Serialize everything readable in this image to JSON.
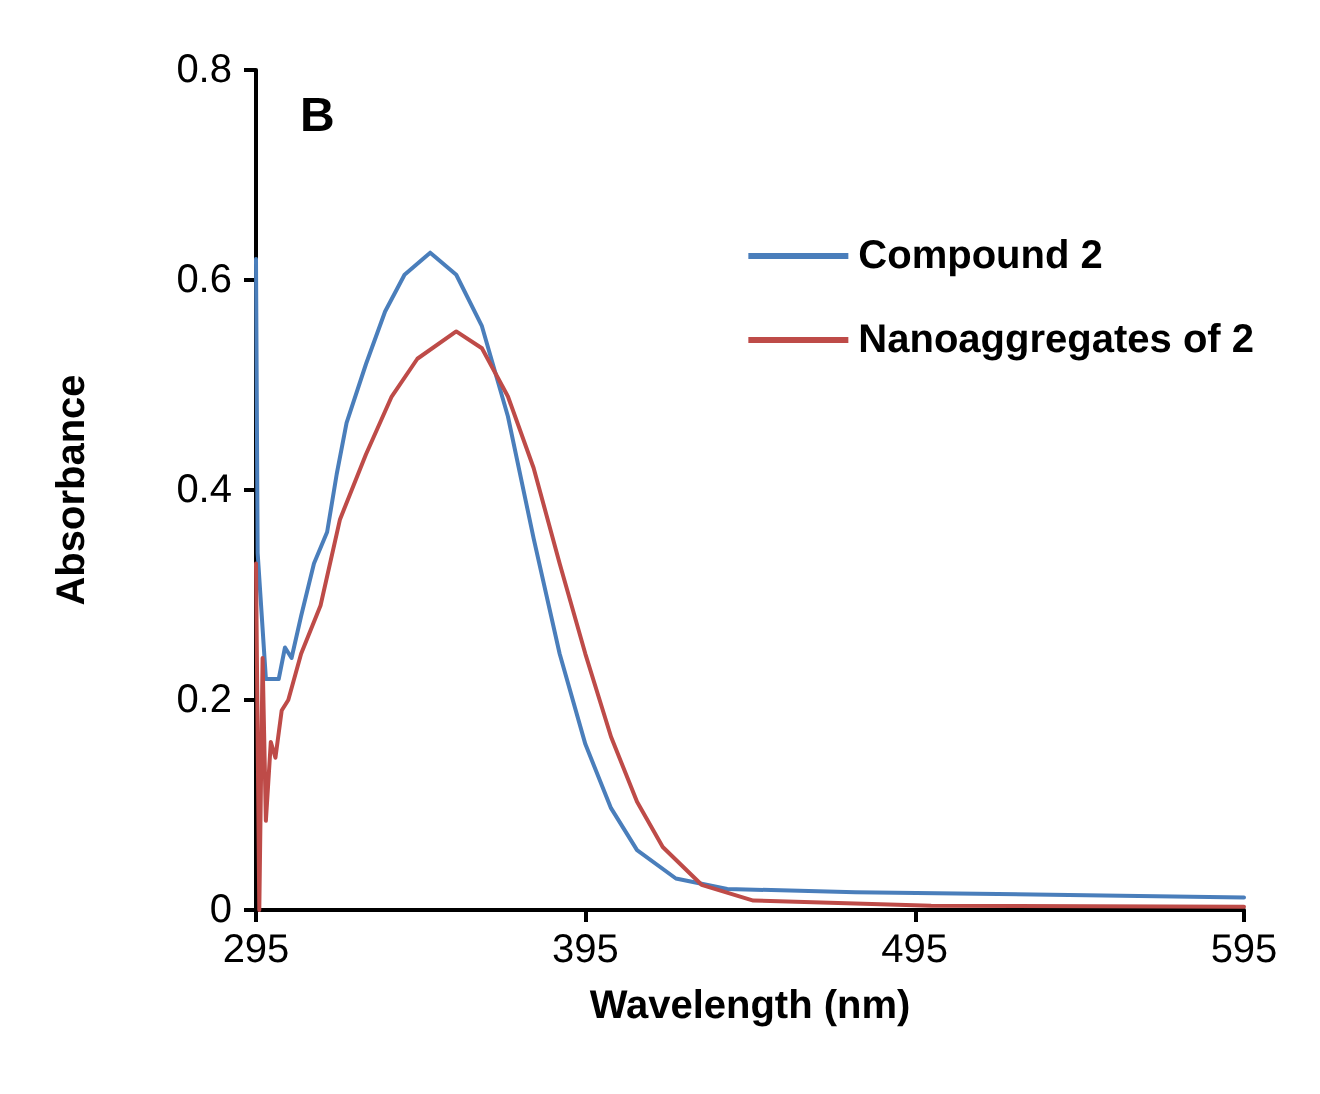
{
  "chart_data": {
    "type": "line",
    "xlabel": "Wavelength (nm)",
    "ylabel": "Absorbance",
    "annotations": [
      "B"
    ],
    "xlim": [
      295,
      595
    ],
    "xticks": [
      295,
      395,
      495,
      595
    ],
    "ylim": [
      0,
      0.8
    ],
    "yticks": [
      0,
      0.2,
      0.4,
      0.6,
      0.8
    ],
    "grid": false,
    "legend": "top right",
    "marker": "none",
    "line_style": "solid",
    "series": [
      {
        "name": "Compound 2",
        "color": "#4a7ebb",
        "x": [
          295,
          295.5,
          298,
          301.9,
          303.8,
          305.8,
          308.7,
          312.6,
          316.6,
          319.5,
          322.5,
          328.4,
          334.2,
          340.1,
          347.9,
          355.8,
          363.6,
          371.5,
          379.3,
          387.2,
          395,
          402.8,
          410.7,
          422.5,
          438.1,
          477,
          595
        ],
        "values": [
          0.62,
          0.34,
          0.22,
          0.22,
          0.25,
          0.24,
          0.28,
          0.33,
          0.36,
          0.415,
          0.464,
          0.52,
          0.57,
          0.605,
          0.626,
          0.605,
          0.556,
          0.47,
          0.354,
          0.244,
          0.158,
          0.097,
          0.057,
          0.03,
          0.02,
          0.017,
          0.012
        ]
      },
      {
        "name": "Nanoaggregates of 2",
        "color": "#be4b48",
        "x": [
          295,
          296,
          297,
          298,
          299.5,
          300.9,
          302.8,
          304.8,
          308.7,
          314.6,
          320.5,
          328.4,
          336.2,
          344,
          355.8,
          363.6,
          371.5,
          379.3,
          387.2,
          395,
          402.8,
          410.7,
          418.5,
          430.3,
          446,
          500,
          595
        ],
        "values": [
          0.33,
          0,
          0.24,
          0.085,
          0.16,
          0.145,
          0.19,
          0.2,
          0.244,
          0.29,
          0.372,
          0.434,
          0.489,
          0.525,
          0.551,
          0.535,
          0.489,
          0.421,
          0.33,
          0.244,
          0.165,
          0.103,
          0.06,
          0.024,
          0.009,
          0.004,
          0.003
        ]
      }
    ]
  }
}
